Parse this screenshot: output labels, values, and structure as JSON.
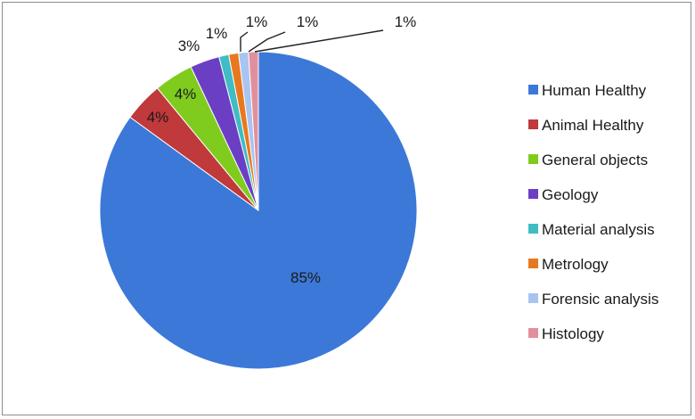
{
  "chart_data": {
    "type": "pie",
    "title": "",
    "slices": [
      {
        "name": "Human Healthy",
        "value": 85,
        "label": "85%",
        "color": "#3c78d8"
      },
      {
        "name": "Animal Healthy",
        "value": 4,
        "label": "4%",
        "color": "#c0393b"
      },
      {
        "name": "General objects",
        "value": 4,
        "label": "4%",
        "color": "#7fcc1f"
      },
      {
        "name": "Geology",
        "value": 3,
        "label": "3%",
        "color": "#6a3fc4"
      },
      {
        "name": "Material analysis",
        "value": 1,
        "label": "1%",
        "color": "#3fbcc4"
      },
      {
        "name": "Metrology",
        "value": 1,
        "label": "1%",
        "color": "#e8781f"
      },
      {
        "name": "Forensic analysis",
        "value": 1,
        "label": "1%",
        "color": "#a9c4f0"
      },
      {
        "name": "Histology",
        "value": 1,
        "label": "1%",
        "color": "#e0909c"
      }
    ],
    "legend_position": "right"
  }
}
